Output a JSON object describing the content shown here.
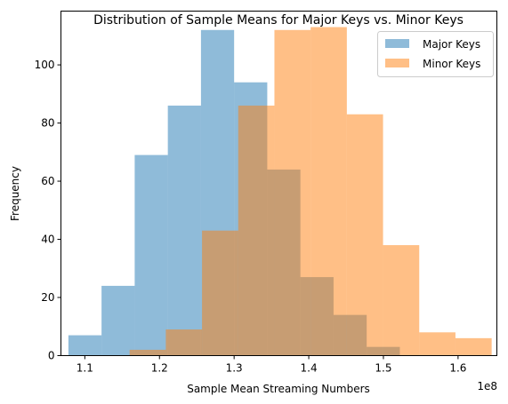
{
  "chart_data": {
    "type": "histogram",
    "title": "Distribution of Sample Means for Major Keys vs. Minor Keys",
    "xlabel": "Sample Mean Streaming Numbers",
    "ylabel": "Frequency",
    "x_offset_label": "1e8",
    "x_scale": 100000000,
    "xlim": [
      1.068,
      1.652
    ],
    "ylim": [
      0,
      118.5
    ],
    "xticks": [
      1.1,
      1.2,
      1.3,
      1.4,
      1.5,
      1.6
    ],
    "xtick_labels": [
      "1.1",
      "1.2",
      "1.3",
      "1.4",
      "1.5",
      "1.6"
    ],
    "yticks": [
      0,
      20,
      40,
      60,
      80,
      100
    ],
    "ytick_labels": [
      "0",
      "20",
      "40",
      "60",
      "80",
      "100"
    ],
    "grid": false,
    "legend_position": "top-right",
    "series": [
      {
        "name": "Major Keys",
        "color": "#1f77b4",
        "alpha": 0.5,
        "bin_edges": [
          1.078,
          1.1224,
          1.1668,
          1.2112,
          1.2556,
          1.3,
          1.3444,
          1.3888,
          1.4332,
          1.4776,
          1.522
        ],
        "counts": [
          7,
          24,
          69,
          86,
          112,
          94,
          64,
          27,
          14,
          3
        ]
      },
      {
        "name": "Minor Keys",
        "color": "#ff7f0e",
        "alpha": 0.5,
        "bin_edges": [
          1.16,
          1.2085,
          1.257,
          1.3055,
          1.354,
          1.4025,
          1.451,
          1.4995,
          1.548,
          1.5965,
          1.645
        ],
        "counts": [
          2,
          9,
          43,
          86,
          112,
          113,
          83,
          38,
          8,
          6
        ]
      }
    ]
  }
}
